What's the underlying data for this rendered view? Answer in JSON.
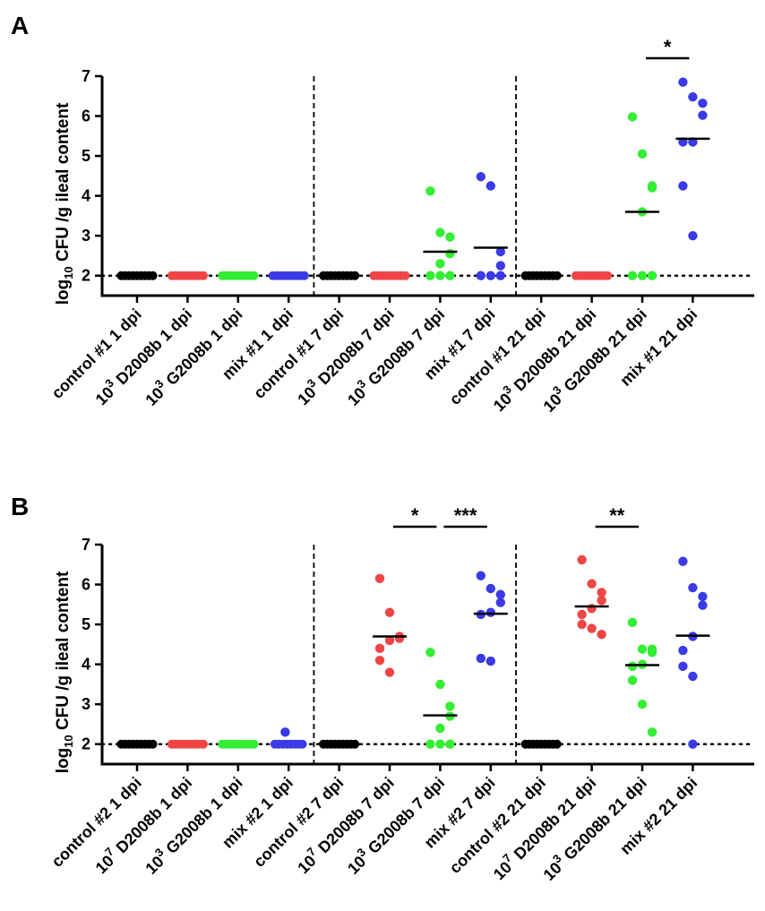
{
  "colors": {
    "control": "#000000",
    "D2008b": "#f04545",
    "G2008b": "#33ee33",
    "mix": "#3a3ae6"
  },
  "chart_data": [
    {
      "panel": "A",
      "type": "scatter",
      "ylabel_parts": [
        "log",
        "10",
        " CFU /g ileal content"
      ],
      "ylim": [
        1.5,
        7
      ],
      "yticks": [
        "2",
        "3",
        "4",
        "5",
        "6",
        "7"
      ],
      "detection_limit": 2,
      "group_separators_after": [
        4,
        8
      ],
      "categories": [
        {
          "pre": "",
          "sup": "",
          "text": "control #1 1 dpi",
          "color": "control",
          "median": null,
          "values": [
            2,
            2,
            2,
            2,
            2,
            2,
            2,
            2,
            2
          ]
        },
        {
          "pre": "10",
          "sup": "3",
          "text": " D2008b 1 dpi",
          "color": "D2008b",
          "median": null,
          "values": [
            2,
            2,
            2,
            2,
            2,
            2,
            2,
            2,
            2
          ]
        },
        {
          "pre": "10",
          "sup": "3",
          "text": " G2008b 1 dpi",
          "color": "G2008b",
          "median": null,
          "values": [
            2,
            2,
            2,
            2,
            2,
            2,
            2,
            2,
            2
          ]
        },
        {
          "pre": "",
          "sup": "",
          "text": "mix #1 1 dpi",
          "color": "mix",
          "median": null,
          "values": [
            2,
            2,
            2,
            2,
            2,
            2,
            2,
            2,
            2
          ]
        },
        {
          "pre": "",
          "sup": "",
          "text": "control #1 7 dpi",
          "color": "control",
          "median": null,
          "values": [
            2,
            2,
            2,
            2,
            2,
            2,
            2,
            2,
            2
          ]
        },
        {
          "pre": "10",
          "sup": "3",
          "text": " D2008b 7 dpi",
          "color": "D2008b",
          "median": null,
          "values": [
            2,
            2,
            2,
            2,
            2,
            2,
            2,
            2,
            2
          ]
        },
        {
          "pre": "10",
          "sup": "3",
          "text": " G2008b 7 dpi",
          "color": "G2008b",
          "median": 2.6,
          "values": [
            4.12,
            3.08,
            2.97,
            2.55,
            2.3,
            2.0,
            2.0,
            2.0
          ]
        },
        {
          "pre": "",
          "sup": "",
          "text": "mix #1 7 dpi",
          "color": "mix",
          "median": 2.7,
          "values": [
            4.48,
            4.25,
            2.6,
            2.25,
            2.0,
            2.0,
            2.0
          ]
        },
        {
          "pre": "",
          "sup": "",
          "text": "control #1 21 dpi",
          "color": "control",
          "median": null,
          "values": [
            2,
            2,
            2,
            2,
            2,
            2,
            2,
            2,
            2
          ]
        },
        {
          "pre": "10",
          "sup": "3",
          "text": " D2008b 21 dpi",
          "color": "D2008b",
          "median": null,
          "values": [
            2,
            2,
            2,
            2,
            2,
            2,
            2,
            2,
            2
          ]
        },
        {
          "pre": "10",
          "sup": "3",
          "text": " G2008b 21 dpi",
          "color": "G2008b",
          "median": 3.6,
          "values": [
            5.98,
            5.05,
            4.25,
            4.2,
            3.6,
            2.0,
            2.0,
            2.0
          ]
        },
        {
          "pre": "",
          "sup": "",
          "text": "mix #1 21 dpi",
          "color": "mix",
          "median": 5.43,
          "values": [
            6.85,
            6.48,
            6.32,
            6.02,
            5.35,
            5.35,
            4.25,
            3.0
          ]
        }
      ],
      "significance": [
        {
          "from": 10,
          "to": 11,
          "label": "*"
        }
      ]
    },
    {
      "panel": "B",
      "type": "scatter",
      "ylabel_parts": [
        "log",
        "10",
        " CFU /g ileal content"
      ],
      "ylim": [
        1.5,
        7
      ],
      "yticks": [
        "2",
        "3",
        "4",
        "5",
        "6",
        "7"
      ],
      "detection_limit": 2,
      "group_separators_after": [
        4,
        8
      ],
      "categories": [
        {
          "pre": "",
          "sup": "",
          "text": "control #2 1 dpi",
          "color": "control",
          "median": null,
          "values": [
            2,
            2,
            2,
            2,
            2,
            2,
            2,
            2,
            2
          ]
        },
        {
          "pre": "10",
          "sup": "7",
          "text": " D2008b 1 dpi",
          "color": "D2008b",
          "median": null,
          "values": [
            2,
            2,
            2,
            2,
            2,
            2,
            2,
            2,
            2
          ]
        },
        {
          "pre": "10",
          "sup": "3",
          "text": " G2008b 1 dpi",
          "color": "G2008b",
          "median": null,
          "values": [
            2,
            2,
            2,
            2,
            2,
            2,
            2,
            2,
            2
          ]
        },
        {
          "pre": "",
          "sup": "",
          "text": "mix #2 1 dpi",
          "color": "mix",
          "median": null,
          "values": [
            2.3,
            2,
            2,
            2,
            2,
            2,
            2,
            2,
            2
          ]
        },
        {
          "pre": "",
          "sup": "",
          "text": "control #2 7 dpi",
          "color": "control",
          "median": null,
          "values": [
            2,
            2,
            2,
            2,
            2,
            2,
            2,
            2,
            2
          ]
        },
        {
          "pre": "10",
          "sup": "7",
          "text": " D2008b 7 dpi",
          "color": "D2008b",
          "median": 4.7,
          "values": [
            6.15,
            5.3,
            4.7,
            4.65,
            4.6,
            4.4,
            4.1,
            3.8
          ]
        },
        {
          "pre": "10",
          "sup": "3",
          "text": " G2008b 7 dpi",
          "color": "G2008b",
          "median": 2.72,
          "values": [
            4.3,
            3.5,
            2.95,
            2.7,
            2.4,
            2.0,
            2.0,
            2.0
          ]
        },
        {
          "pre": "",
          "sup": "",
          "text": "mix #2 7 dpi",
          "color": "mix",
          "median": 5.27,
          "values": [
            6.22,
            5.9,
            5.75,
            5.55,
            5.3,
            5.25,
            4.15,
            4.08
          ]
        },
        {
          "pre": "",
          "sup": "",
          "text": "control #2 21 dpi",
          "color": "control",
          "median": null,
          "values": [
            2,
            2,
            2,
            2,
            2,
            2,
            2,
            2,
            2
          ]
        },
        {
          "pre": "10",
          "sup": "7",
          "text": " D2008b 21 dpi",
          "color": "D2008b",
          "median": 5.45,
          "values": [
            6.62,
            6.02,
            5.8,
            5.6,
            5.4,
            5.25,
            5.0,
            4.9,
            4.75
          ]
        },
        {
          "pre": "10",
          "sup": "3",
          "text": " G2008b 21 dpi",
          "color": "G2008b",
          "median": 3.98,
          "values": [
            5.05,
            4.38,
            4.38,
            4.3,
            4.0,
            3.95,
            3.6,
            3.0,
            2.3
          ]
        },
        {
          "pre": "",
          "sup": "",
          "text": "mix #2 21 dpi",
          "color": "mix",
          "median": 4.72,
          "values": [
            6.58,
            5.92,
            5.7,
            5.48,
            4.7,
            4.35,
            3.95,
            3.7,
            2.0
          ]
        }
      ],
      "significance": [
        {
          "from": 5,
          "to": 6,
          "label": "*"
        },
        {
          "from": 6,
          "to": 7,
          "label": "***"
        },
        {
          "from": 9,
          "to": 10,
          "label": "**"
        }
      ]
    }
  ]
}
